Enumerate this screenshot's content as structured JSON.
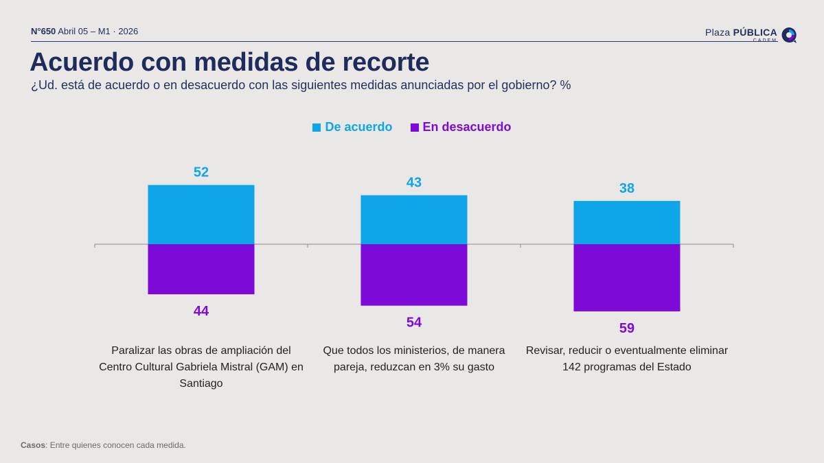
{
  "header": {
    "issue_number": "N°650",
    "issue_date": "Abril 05 – M1 · 2026",
    "brand_light": "Plaza",
    "brand_bold": "PÚBLICA",
    "brand_sub": "CADEM"
  },
  "title": "Acuerdo con medidas de recorte",
  "subtitle": "¿Ud. está de acuerdo o en desacuerdo con las siguientes medidas anunciadas por el gobierno? %",
  "footer": {
    "label": "Casos",
    "text": ": Entre quienes conocen cada medida."
  },
  "chart_data": {
    "type": "bar",
    "categories": [
      "Paralizar las obras de ampliación del Centro Cultural Gabriela Mistral (GAM) en Santiago",
      "Que todos los ministerios, de manera pareja, reduzcan en 3% su gasto",
      "Revisar, reducir o eventualmente eliminar 142 programas del Estado"
    ],
    "series": [
      {
        "name": "De acuerdo",
        "values": [
          52,
          43,
          38
        ],
        "color": "#0ea5e9",
        "direction": "up"
      },
      {
        "name": "En desacuerdo",
        "values": [
          44,
          54,
          59
        ],
        "color": "#7e0ad8",
        "direction": "down"
      }
    ],
    "legend_position": "top-center",
    "grid": false
  }
}
